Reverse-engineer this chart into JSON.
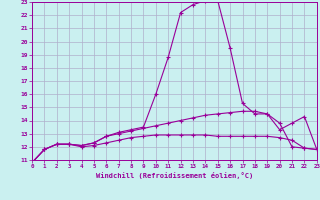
{
  "xlabel": "Windchill (Refroidissement éolien,°C)",
  "x_values": [
    0,
    1,
    2,
    3,
    4,
    5,
    6,
    7,
    8,
    9,
    10,
    11,
    12,
    13,
    14,
    15,
    16,
    17,
    18,
    19,
    20,
    21,
    22,
    23
  ],
  "line1_y": [
    10.8,
    11.8,
    12.2,
    12.2,
    12.1,
    12.3,
    12.8,
    13.1,
    13.3,
    13.5,
    16.0,
    18.8,
    22.2,
    22.8,
    23.1,
    23.1,
    19.5,
    15.3,
    14.5,
    14.5,
    13.3,
    13.8,
    14.3,
    11.8
  ],
  "line2_y": [
    10.8,
    11.8,
    12.2,
    12.2,
    12.1,
    12.3,
    12.8,
    13.0,
    13.2,
    13.4,
    13.6,
    13.8,
    14.0,
    14.2,
    14.4,
    14.5,
    14.6,
    14.7,
    14.7,
    14.5,
    13.8,
    12.0,
    11.9,
    11.8
  ],
  "line3_y": [
    10.8,
    11.8,
    12.2,
    12.2,
    12.0,
    12.1,
    12.3,
    12.5,
    12.7,
    12.8,
    12.9,
    12.9,
    12.9,
    12.9,
    12.9,
    12.8,
    12.8,
    12.8,
    12.8,
    12.8,
    12.7,
    12.5,
    11.9,
    11.8
  ],
  "line_color": "#990099",
  "bg_color": "#caf0f0",
  "grid_color": "#b0b0cc",
  "ylim": [
    11,
    23
  ],
  "xlim": [
    0,
    23
  ],
  "yticks": [
    11,
    12,
    13,
    14,
    15,
    16,
    17,
    18,
    19,
    20,
    21,
    22,
    23
  ]
}
